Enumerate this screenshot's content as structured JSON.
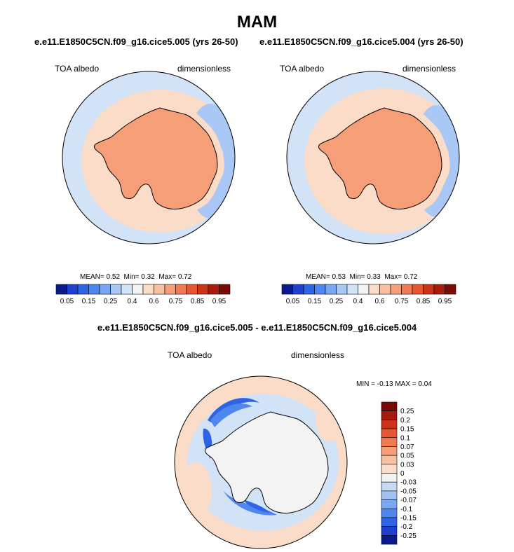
{
  "title": "MAM",
  "panels": [
    {
      "case": "e.e11.E1850C5CN.f09_g16.cice5.005 (yrs 26-50)",
      "variable": "TOA albedo",
      "units": "dimensionless",
      "stats": {
        "mean_label": "MEAN=",
        "mean": "0.52",
        "min_label": "Min=",
        "min": "0.32",
        "max_label": "Max=",
        "max": "0.72"
      }
    },
    {
      "case": "e.e11.E1850C5CN.f09_g16.cice5.004 (yrs 26-50)",
      "variable": "TOA albedo",
      "units": "dimensionless",
      "stats": {
        "mean_label": "MEAN=",
        "mean": "0.53",
        "min_label": "Min=",
        "min": "0.33",
        "max_label": "Max=",
        "max": "0.72"
      }
    }
  ],
  "colorbar": {
    "labels": [
      "0.05",
      "0.15",
      "0.25",
      "0.4",
      "0.6",
      "0.75",
      "0.85",
      "0.95"
    ],
    "colors": [
      "#0a1a8c",
      "#1f3fd0",
      "#2e63e6",
      "#4f86ef",
      "#7aa7f3",
      "#a9c8f6",
      "#d2e3f8",
      "#f3f3f3",
      "#fbdcc9",
      "#f8bfa1",
      "#f59e78",
      "#f07a52",
      "#e65633",
      "#cc3218",
      "#a81a0c",
      "#7a0a04"
    ]
  },
  "difference": {
    "title": "e.e11.E1850C5CN.f09_g16.cice5.005 - e.e11.E1850C5CN.f09_g16.cice5.004",
    "variable": "TOA albedo",
    "units": "dimensionless",
    "stats": {
      "min_label": "MIN =",
      "min": "-0.13",
      "max_label": "MAX =",
      "max": "0.04"
    },
    "colorbar": {
      "labels": [
        "0.25",
        "0.2",
        "0.15",
        "0.1",
        "0.07",
        "0.05",
        "0.03",
        "0",
        "-0.03",
        "-0.05",
        "-0.07",
        "-0.1",
        "-0.15",
        "-0.2",
        "-0.25"
      ],
      "colors": [
        "#7a0a04",
        "#a81a0c",
        "#cc3218",
        "#e65633",
        "#f07a52",
        "#f59e78",
        "#f8bfa1",
        "#fbdcc9",
        "#f3f3f3",
        "#c7daf6",
        "#a3c1f3",
        "#7aa7f3",
        "#4f86ef",
        "#2e63e6",
        "#1f3fd0",
        "#0a1a8c"
      ]
    }
  }
}
